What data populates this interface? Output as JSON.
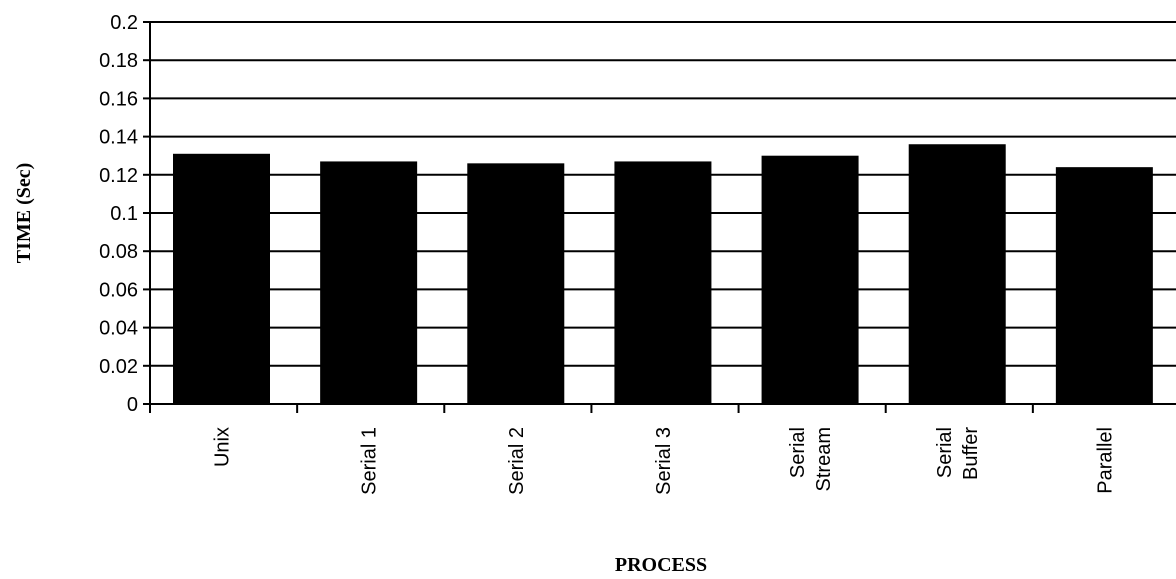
{
  "chart_data": {
    "type": "bar",
    "title": "",
    "xlabel": "PROCESS",
    "ylabel": "TIME  (Sec)",
    "ylim": [
      0,
      0.2
    ],
    "ytick_step": 0.02,
    "ytick_labels": [
      "0",
      "0.02",
      "0.04",
      "0.06",
      "0.08",
      "0.1",
      "0.12",
      "0.14",
      "0.16",
      "0.18",
      "0.2"
    ],
    "categories": [
      [
        "Unix"
      ],
      [
        "Serial  1"
      ],
      [
        "Serial  2"
      ],
      [
        "Serial  3"
      ],
      [
        "Serial",
        "Stream"
      ],
      [
        "Serial",
        "Buffer"
      ],
      [
        "Parallel"
      ]
    ],
    "values": [
      0.131,
      0.127,
      0.126,
      0.127,
      0.13,
      0.136,
      0.124
    ],
    "grid": true,
    "bar_color": "#000000"
  }
}
